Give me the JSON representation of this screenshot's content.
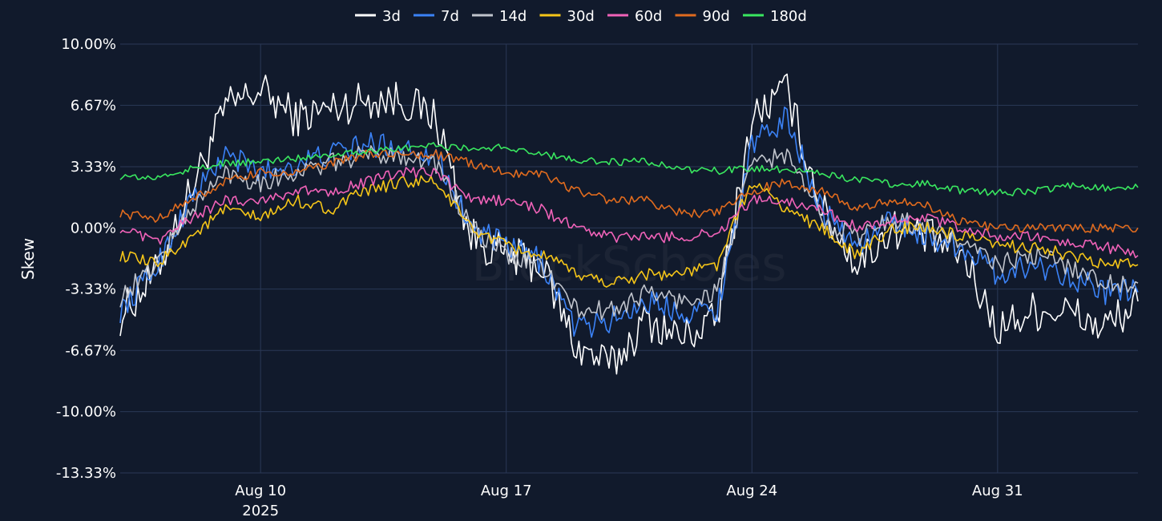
{
  "chart_data": {
    "type": "line",
    "ylabel": "Skew",
    "xlabel": "",
    "watermark": "BlockScholes",
    "ylim": [
      -13.33,
      10.0
    ],
    "y_tick_labels": [
      "10.00%",
      "6.67%",
      "3.33%",
      "0.00%",
      "-3.33%",
      "-6.67%",
      "-10.00%",
      "-13.33%"
    ],
    "y_tick_values": [
      10.0,
      6.67,
      3.33,
      0.0,
      -3.33,
      -6.67,
      -10.0,
      -13.33
    ],
    "xlim": [
      "2025-08-06",
      "2025-09-04"
    ],
    "x_ticks": [
      {
        "date": "2025-08-10",
        "label": "Aug 10",
        "sublabel": "2025"
      },
      {
        "date": "2025-08-17",
        "label": "Aug 17",
        "sublabel": ""
      },
      {
        "date": "2025-08-24",
        "label": "Aug 24",
        "sublabel": ""
      },
      {
        "date": "2025-08-31",
        "label": "Aug 31",
        "sublabel": ""
      }
    ],
    "grid": true,
    "legend_position": "top-center",
    "x": [
      "2025-08-06",
      "2025-08-07",
      "2025-08-08",
      "2025-08-09",
      "2025-08-10",
      "2025-08-11",
      "2025-08-12",
      "2025-08-13",
      "2025-08-14",
      "2025-08-15",
      "2025-08-16",
      "2025-08-17",
      "2025-08-18",
      "2025-08-19",
      "2025-08-20",
      "2025-08-21",
      "2025-08-22",
      "2025-08-23",
      "2025-08-24",
      "2025-08-25",
      "2025-08-26",
      "2025-08-27",
      "2025-08-28",
      "2025-08-29",
      "2025-08-30",
      "2025-08-31",
      "2025-09-01",
      "2025-09-02",
      "2025-09-03",
      "2025-09-04"
    ],
    "series": [
      {
        "name": "3d",
        "color": "#ffffff",
        "values": [
          -4.8,
          -2.5,
          2.0,
          6.5,
          7.5,
          6.0,
          6.5,
          7.0,
          7.0,
          6.0,
          -0.5,
          -1.5,
          -2.0,
          -6.5,
          -7.5,
          -5.0,
          -6.0,
          -5.0,
          6.0,
          7.5,
          1.0,
          -2.0,
          0.0,
          -0.5,
          -1.5,
          -5.5,
          -4.5,
          -4.5,
          -5.5,
          -4.0
        ]
      },
      {
        "name": "7d",
        "color": "#3b82f6",
        "values": [
          -4.5,
          -2.2,
          1.5,
          4.0,
          3.0,
          3.5,
          4.0,
          4.5,
          4.5,
          4.0,
          0.0,
          -1.0,
          -1.8,
          -5.5,
          -5.0,
          -4.0,
          -4.5,
          -4.5,
          4.5,
          6.0,
          1.0,
          -1.0,
          0.5,
          -0.5,
          -1.0,
          -2.5,
          -2.0,
          -2.5,
          -3.5,
          -3.5
        ]
      },
      {
        "name": "14d",
        "color": "#c0c4cc",
        "values": [
          -3.8,
          -2.0,
          1.0,
          3.0,
          2.5,
          3.0,
          3.5,
          4.0,
          4.0,
          3.5,
          0.0,
          -1.5,
          -2.0,
          -4.5,
          -4.5,
          -3.5,
          -4.0,
          -3.5,
          3.5,
          4.0,
          0.5,
          -0.5,
          0.5,
          0.0,
          -0.8,
          -2.0,
          -1.5,
          -2.0,
          -3.0,
          -3.0
        ]
      },
      {
        "name": "30d",
        "color": "#f5c518",
        "values": [
          -1.5,
          -2.0,
          -0.5,
          1.0,
          0.5,
          1.5,
          1.0,
          2.0,
          2.5,
          2.5,
          0.0,
          -1.0,
          -1.5,
          -2.5,
          -3.0,
          -2.5,
          -2.5,
          -2.0,
          2.5,
          1.0,
          0.0,
          -1.5,
          0.0,
          0.0,
          -0.5,
          -1.0,
          -1.0,
          -1.5,
          -2.0,
          -2.0
        ]
      },
      {
        "name": "60d",
        "color": "#f062b8",
        "values": [
          0.0,
          -0.8,
          0.5,
          1.5,
          1.5,
          2.0,
          2.0,
          2.5,
          3.0,
          3.0,
          1.5,
          1.5,
          1.0,
          0.0,
          -0.5,
          -0.5,
          -0.5,
          -0.3,
          1.5,
          1.5,
          1.0,
          0.0,
          0.5,
          0.5,
          0.0,
          -0.5,
          -0.5,
          -0.8,
          -1.0,
          -1.5
        ]
      },
      {
        "name": "90d",
        "color": "#e06b1e",
        "values": [
          0.8,
          0.5,
          1.5,
          2.5,
          3.0,
          3.0,
          3.5,
          4.0,
          4.0,
          4.0,
          3.5,
          3.0,
          3.0,
          2.0,
          1.5,
          1.5,
          0.8,
          0.8,
          2.0,
          2.5,
          2.0,
          1.0,
          1.5,
          1.2,
          0.3,
          0.0,
          0.0,
          0.0,
          0.0,
          0.0
        ]
      },
      {
        "name": "180d",
        "color": "#39e75f",
        "values": [
          2.8,
          2.7,
          3.2,
          3.5,
          3.6,
          3.8,
          4.0,
          4.2,
          4.3,
          4.5,
          4.3,
          4.4,
          4.0,
          3.7,
          3.6,
          3.6,
          3.2,
          3.1,
          3.2,
          3.2,
          3.0,
          2.6,
          2.4,
          2.4,
          2.0,
          1.9,
          2.0,
          2.3,
          2.2,
          2.2
        ]
      }
    ]
  }
}
